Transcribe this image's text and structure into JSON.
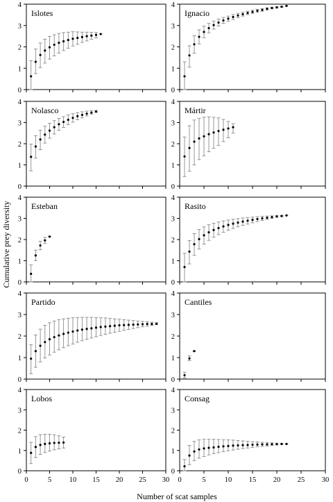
{
  "figure": {
    "ylabel": "Cumulative prey diversity",
    "xlabel": "Number of scat samples",
    "x_ticks": [
      "0",
      "5",
      "10",
      "15",
      "20",
      "25",
      "30"
    ]
  },
  "chart_data": [
    {
      "type": "scatter",
      "title": "Islotes",
      "xlim": [
        0,
        30
      ],
      "ylim": [
        0,
        4
      ],
      "y_ticks": [
        "0",
        "1",
        "2",
        "3",
        "4"
      ],
      "x": [
        1,
        2,
        3,
        4,
        5,
        6,
        7,
        8,
        9,
        10,
        11,
        12,
        13,
        14,
        15,
        16
      ],
      "y": [
        0.62,
        1.3,
        1.62,
        1.83,
        1.98,
        2.1,
        2.19,
        2.26,
        2.32,
        2.38,
        2.42,
        2.46,
        2.5,
        2.53,
        2.56,
        2.6
      ],
      "lower": [
        0.0,
        0.75,
        1.03,
        1.24,
        1.43,
        1.58,
        1.71,
        1.83,
        1.94,
        2.04,
        2.12,
        2.21,
        2.28,
        2.36,
        2.42,
        2.6
      ],
      "upper": [
        1.35,
        1.9,
        2.18,
        2.36,
        2.49,
        2.57,
        2.63,
        2.67,
        2.69,
        2.71,
        2.7,
        2.69,
        2.69,
        2.68,
        2.67,
        2.6
      ]
    },
    {
      "type": "scatter",
      "title": "Ignacio",
      "xlim": [
        0,
        30
      ],
      "ylim": [
        0,
        4
      ],
      "y_ticks": [
        "0",
        "1",
        "2",
        "3",
        "4"
      ],
      "x": [
        1,
        2,
        3,
        4,
        5,
        6,
        7,
        8,
        9,
        10,
        11,
        12,
        13,
        14,
        15,
        16,
        17,
        18,
        19,
        20,
        21,
        22
      ],
      "y": [
        0.62,
        1.6,
        2.12,
        2.47,
        2.7,
        2.88,
        3.02,
        3.14,
        3.24,
        3.32,
        3.4,
        3.47,
        3.53,
        3.59,
        3.64,
        3.69,
        3.73,
        3.78,
        3.82,
        3.85,
        3.88,
        3.92
      ],
      "lower": [
        0.0,
        1.05,
        1.7,
        2.14,
        2.43,
        2.66,
        2.83,
        2.98,
        3.1,
        3.2,
        3.28,
        3.37,
        3.44,
        3.51,
        3.57,
        3.62,
        3.67,
        3.73,
        3.78,
        3.82,
        3.86,
        3.92
      ],
      "upper": [
        1.3,
        2.05,
        2.52,
        2.8,
        2.97,
        3.1,
        3.21,
        3.3,
        3.38,
        3.44,
        3.52,
        3.57,
        3.62,
        3.67,
        3.71,
        3.76,
        3.79,
        3.83,
        3.86,
        3.88,
        3.9,
        3.92
      ]
    },
    {
      "type": "scatter",
      "title": "Nolasco",
      "xlim": [
        0,
        30
      ],
      "ylim": [
        0,
        4
      ],
      "y_ticks": [
        "0",
        "1",
        "2",
        "3",
        "4"
      ],
      "x": [
        1,
        2,
        3,
        4,
        5,
        6,
        7,
        8,
        9,
        10,
        11,
        12,
        13,
        14,
        15
      ],
      "y": [
        1.38,
        1.87,
        2.2,
        2.43,
        2.62,
        2.78,
        2.92,
        3.03,
        3.13,
        3.22,
        3.3,
        3.36,
        3.42,
        3.47,
        3.52
      ],
      "lower": [
        0.72,
        1.32,
        1.72,
        2.03,
        2.26,
        2.46,
        2.63,
        2.77,
        2.9,
        3.02,
        3.13,
        3.22,
        3.31,
        3.4,
        3.48
      ],
      "upper": [
        1.98,
        2.38,
        2.64,
        2.83,
        2.97,
        3.09,
        3.2,
        3.28,
        3.36,
        3.42,
        3.47,
        3.51,
        3.54,
        3.56,
        3.57
      ]
    },
    {
      "type": "scatter",
      "title": "Mártir",
      "xlim": [
        0,
        30
      ],
      "ylim": [
        0,
        4
      ],
      "y_ticks": [
        "0",
        "1",
        "2",
        "3",
        "4"
      ],
      "x": [
        1,
        2,
        3,
        4,
        5,
        6,
        7,
        8,
        9,
        10,
        11
      ],
      "y": [
        1.4,
        1.8,
        2.1,
        2.25,
        2.35,
        2.45,
        2.53,
        2.6,
        2.66,
        2.72,
        2.78
      ],
      "lower": [
        0.45,
        0.7,
        1.0,
        1.25,
        1.43,
        1.62,
        1.78,
        1.92,
        2.1,
        2.28,
        2.5
      ],
      "upper": [
        2.32,
        2.85,
        3.12,
        3.2,
        3.25,
        3.27,
        3.25,
        3.22,
        3.15,
        3.05,
        2.95
      ]
    },
    {
      "type": "scatter",
      "title": "Esteban",
      "xlim": [
        0,
        30
      ],
      "ylim": [
        0,
        4
      ],
      "y_ticks": [
        "0",
        "1",
        "2",
        "3",
        "4"
      ],
      "x": [
        1,
        2,
        3,
        4,
        5
      ],
      "y": [
        0.38,
        1.25,
        1.72,
        1.96,
        2.14
      ],
      "lower": [
        0.0,
        1.0,
        1.52,
        1.82,
        2.14
      ],
      "upper": [
        0.8,
        1.5,
        1.92,
        2.1,
        2.14
      ]
    },
    {
      "type": "scatter",
      "title": "Rasito",
      "xlim": [
        0,
        30
      ],
      "ylim": [
        0,
        4
      ],
      "y_ticks": [
        "0",
        "1",
        "2",
        "3",
        "4"
      ],
      "x": [
        1,
        2,
        3,
        4,
        5,
        6,
        7,
        8,
        9,
        10,
        11,
        12,
        13,
        14,
        15,
        16,
        17,
        18,
        19,
        20,
        21,
        22
      ],
      "y": [
        0.7,
        1.43,
        1.78,
        2.02,
        2.2,
        2.34,
        2.45,
        2.54,
        2.62,
        2.69,
        2.75,
        2.8,
        2.85,
        2.89,
        2.93,
        2.97,
        3.0,
        3.03,
        3.06,
        3.09,
        3.11,
        3.14
      ],
      "lower": [
        0.0,
        0.85,
        1.25,
        1.55,
        1.78,
        1.96,
        2.11,
        2.23,
        2.34,
        2.44,
        2.52,
        2.6,
        2.67,
        2.73,
        2.79,
        2.85,
        2.9,
        2.95,
        3.0,
        3.05,
        3.08,
        3.14
      ],
      "upper": [
        1.35,
        1.95,
        2.28,
        2.48,
        2.6,
        2.7,
        2.77,
        2.83,
        2.88,
        2.92,
        2.96,
        2.99,
        3.02,
        3.04,
        3.06,
        3.08,
        3.1,
        3.11,
        3.12,
        3.13,
        3.14,
        3.14
      ]
    },
    {
      "type": "scatter",
      "title": "Partido",
      "xlim": [
        0,
        30
      ],
      "ylim": [
        0,
        4
      ],
      "y_ticks": [
        "0",
        "1",
        "2",
        "3",
        "4"
      ],
      "x": [
        1,
        2,
        3,
        4,
        5,
        6,
        7,
        8,
        9,
        10,
        11,
        12,
        13,
        14,
        15,
        16,
        17,
        18,
        19,
        20,
        21,
        22,
        23,
        24,
        25,
        26,
        27,
        28
      ],
      "y": [
        0.95,
        1.3,
        1.55,
        1.72,
        1.85,
        1.95,
        2.03,
        2.1,
        2.16,
        2.21,
        2.26,
        2.3,
        2.33,
        2.36,
        2.39,
        2.42,
        2.44,
        2.46,
        2.48,
        2.5,
        2.51,
        2.52,
        2.53,
        2.54,
        2.55,
        2.56,
        2.56,
        2.57
      ],
      "lower": [
        0.25,
        0.55,
        0.8,
        0.98,
        1.12,
        1.25,
        1.36,
        1.46,
        1.55,
        1.63,
        1.71,
        1.78,
        1.85,
        1.91,
        1.97,
        2.03,
        2.08,
        2.13,
        2.18,
        2.22,
        2.27,
        2.31,
        2.35,
        2.39,
        2.43,
        2.46,
        2.5,
        2.53
      ],
      "upper": [
        1.6,
        2.05,
        2.32,
        2.5,
        2.62,
        2.7,
        2.76,
        2.8,
        2.83,
        2.85,
        2.86,
        2.87,
        2.87,
        2.87,
        2.86,
        2.85,
        2.84,
        2.82,
        2.8,
        2.78,
        2.76,
        2.74,
        2.72,
        2.7,
        2.68,
        2.66,
        2.64,
        2.62
      ]
    },
    {
      "type": "scatter",
      "title": "Cantiles",
      "xlim": [
        0,
        30
      ],
      "ylim": [
        0,
        4
      ],
      "y_ticks": [
        "0",
        "1",
        "2",
        "3",
        "4"
      ],
      "x": [
        1,
        2,
        3
      ],
      "y": [
        0.18,
        0.96,
        1.3
      ],
      "lower": [
        0.05,
        0.86,
        1.3
      ],
      "upper": [
        0.32,
        1.08,
        1.3
      ]
    },
    {
      "type": "scatter",
      "title": "Lobos",
      "xlim": [
        0,
        30
      ],
      "ylim": [
        0,
        4
      ],
      "y_ticks": [
        "0",
        "1",
        "2",
        "3",
        "4"
      ],
      "x": [
        1,
        2,
        3,
        4,
        5,
        6,
        7,
        8
      ],
      "y": [
        0.88,
        1.17,
        1.27,
        1.32,
        1.35,
        1.37,
        1.38,
        1.39
      ],
      "lower": [
        0.35,
        0.65,
        0.8,
        0.9,
        0.97,
        1.03,
        1.08,
        1.12
      ],
      "upper": [
        1.4,
        1.68,
        1.78,
        1.8,
        1.8,
        1.77,
        1.72,
        1.66
      ]
    },
    {
      "type": "scatter",
      "title": "Consag",
      "xlim": [
        0,
        30
      ],
      "ylim": [
        0,
        4
      ],
      "y_ticks": [
        "0",
        "1",
        "2",
        "3",
        "4"
      ],
      "x": [
        1,
        2,
        3,
        4,
        5,
        6,
        7,
        8,
        9,
        10,
        11,
        12,
        13,
        14,
        15,
        16,
        17,
        18,
        19,
        20,
        21,
        22
      ],
      "y": [
        0.22,
        0.75,
        0.95,
        1.05,
        1.1,
        1.13,
        1.15,
        1.18,
        1.2,
        1.22,
        1.24,
        1.25,
        1.26,
        1.27,
        1.28,
        1.29,
        1.3,
        1.3,
        1.31,
        1.31,
        1.32,
        1.32
      ],
      "lower": [
        0.0,
        0.3,
        0.5,
        0.62,
        0.7,
        0.78,
        0.84,
        0.89,
        0.94,
        0.98,
        1.02,
        1.06,
        1.09,
        1.12,
        1.15,
        1.18,
        1.2,
        1.22,
        1.25,
        1.27,
        1.29,
        1.32
      ],
      "upper": [
        0.55,
        1.25,
        1.45,
        1.52,
        1.55,
        1.55,
        1.55,
        1.54,
        1.53,
        1.52,
        1.51,
        1.49,
        1.47,
        1.45,
        1.43,
        1.42,
        1.4,
        1.38,
        1.37,
        1.36,
        1.34,
        1.32
      ]
    }
  ]
}
